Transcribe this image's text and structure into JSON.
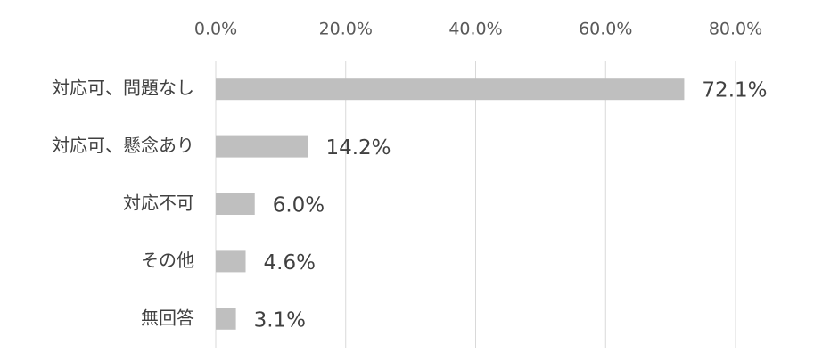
{
  "chart_data": {
    "type": "bar",
    "orientation": "horizontal",
    "categories": [
      "対応可、問題なし",
      "対応可、懸念あり",
      "対応不可",
      "その他",
      "無回答"
    ],
    "values": [
      72.1,
      14.2,
      6.0,
      4.6,
      3.1
    ],
    "value_labels": [
      "72.1%",
      "14.2%",
      "6.0%",
      "4.6%",
      "3.1%"
    ],
    "color": "#bfbfbf",
    "xlim": [
      0,
      80
    ],
    "xticks": [
      {
        "value": 0,
        "label": "0.0%"
      },
      {
        "value": 20,
        "label": "20.0%"
      },
      {
        "value": 40,
        "label": "40.0%"
      },
      {
        "value": 60,
        "label": "60.0%"
      },
      {
        "value": 80,
        "label": "80.0%"
      }
    ],
    "grid": true
  }
}
